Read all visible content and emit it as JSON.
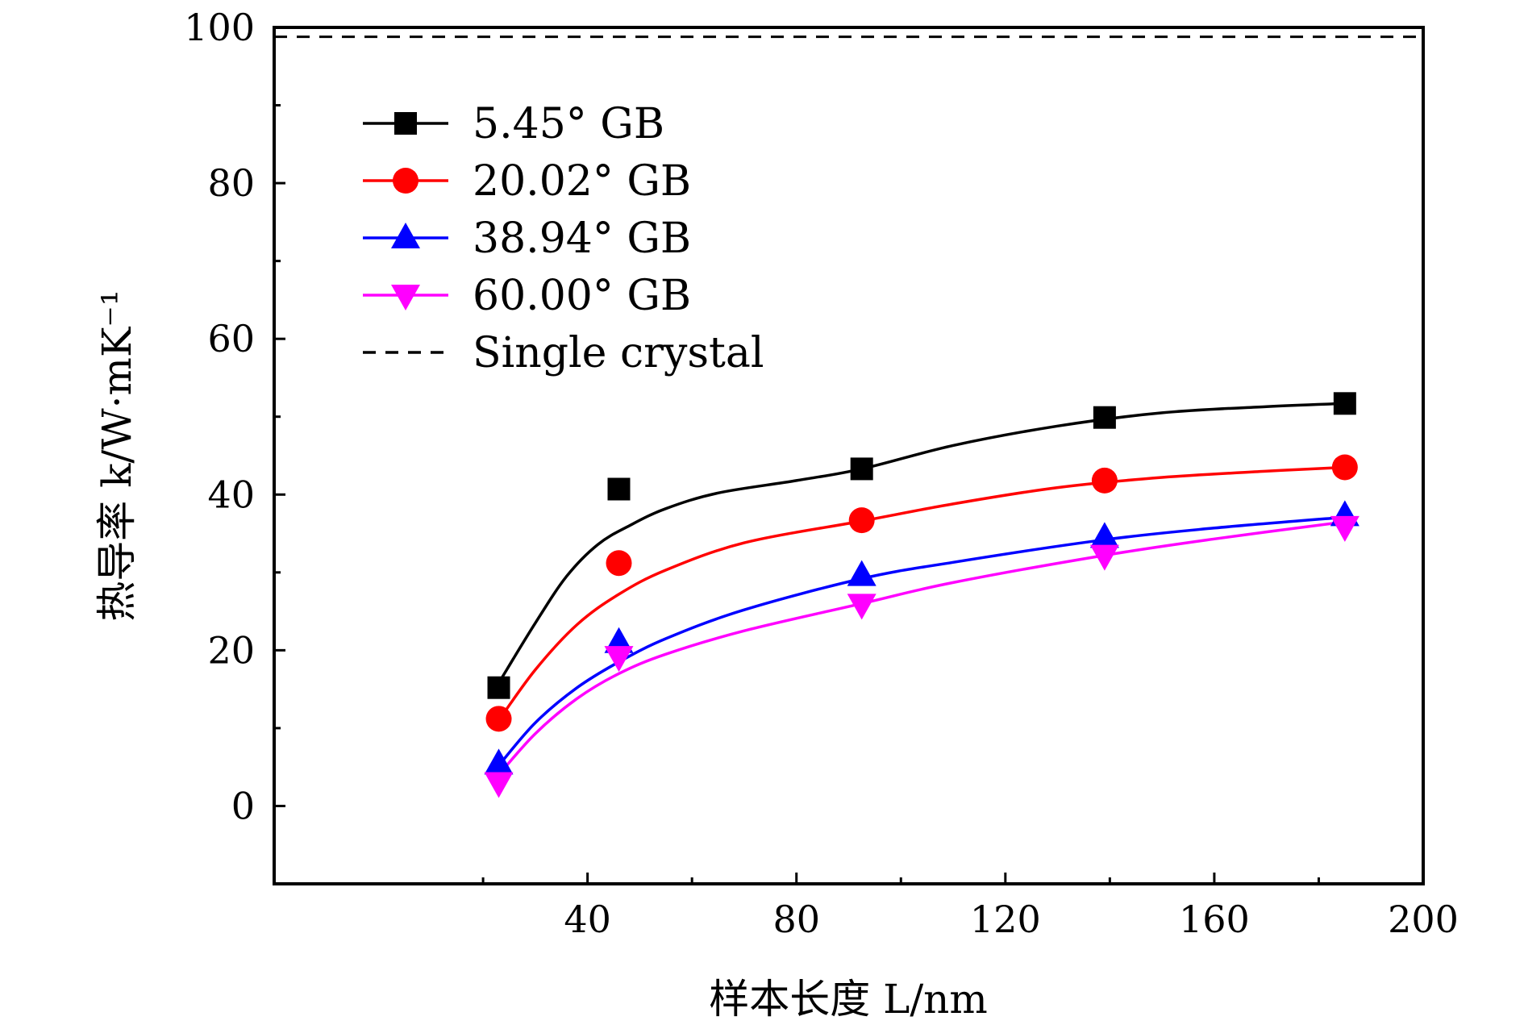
{
  "chart_data": {
    "type": "scatter",
    "title": "",
    "xlabel": "样本长度 L/nm",
    "ylabel": "热导率 k/W·mK⁻¹",
    "xlim": [
      -20,
      200
    ],
    "ylim": [
      -10,
      100
    ],
    "xticks": [
      40,
      80,
      120,
      160,
      200
    ],
    "xtick_labels": [
      "40",
      "80",
      "120",
      "160",
      "200"
    ],
    "yticks": [
      0,
      20,
      40,
      60,
      80,
      100
    ],
    "ytick_labels": [
      "0",
      "20",
      "40",
      "60",
      "80",
      "100"
    ],
    "x": [
      23,
      46,
      92.5,
      139,
      185
    ],
    "grid": false,
    "legend_position": "top-left",
    "series": [
      {
        "name": "5.45° GB",
        "color": "#000000",
        "marker": "square",
        "values": [
          15.2,
          40.7,
          43.3,
          49.9,
          51.7
        ],
        "fit": [
          [
            23,
            15.8
          ],
          [
            30,
            23.5
          ],
          [
            36,
            29.5
          ],
          [
            42,
            33.6
          ],
          [
            48,
            36.0
          ],
          [
            55,
            38.2
          ],
          [
            65,
            40.2
          ],
          [
            80,
            41.8
          ],
          [
            92.5,
            43.3
          ],
          [
            110,
            46.3
          ],
          [
            130,
            48.8
          ],
          [
            150,
            50.5
          ],
          [
            170,
            51.3
          ],
          [
            185,
            51.7
          ]
        ]
      },
      {
        "name": "20.02° GB",
        "color": "#ff0000",
        "marker": "circle",
        "values": [
          11.2,
          31.2,
          36.7,
          41.8,
          43.5
        ],
        "fit": [
          [
            23,
            11.0
          ],
          [
            30,
            17.5
          ],
          [
            38,
            23.3
          ],
          [
            46,
            27.2
          ],
          [
            55,
            30.3
          ],
          [
            70,
            33.8
          ],
          [
            92.5,
            36.6
          ],
          [
            110,
            38.8
          ],
          [
            130,
            40.9
          ],
          [
            150,
            42.2
          ],
          [
            170,
            43.0
          ],
          [
            185,
            43.5
          ]
        ]
      },
      {
        "name": "38.94° GB",
        "color": "#0000ff",
        "marker": "triangle-up",
        "values": [
          5.4,
          21.0,
          29.6,
          34.5,
          37.3
        ],
        "fit": [
          [
            23,
            5.2
          ],
          [
            30,
            10.7
          ],
          [
            38,
            15.2
          ],
          [
            46,
            18.5
          ],
          [
            55,
            21.5
          ],
          [
            70,
            25.2
          ],
          [
            92.5,
            29.2
          ],
          [
            110,
            31.3
          ],
          [
            139,
            34.2
          ],
          [
            160,
            35.7
          ],
          [
            185,
            37.1
          ]
        ]
      },
      {
        "name": "60.00° GB",
        "color": "#ff00ff",
        "marker": "triangle-down",
        "values": [
          3.0,
          19.2,
          25.9,
          32.2,
          35.9
        ],
        "fit": [
          [
            23,
            4.0
          ],
          [
            30,
            9.3
          ],
          [
            38,
            13.8
          ],
          [
            46,
            17.0
          ],
          [
            55,
            19.5
          ],
          [
            70,
            22.5
          ],
          [
            92.5,
            26.0
          ],
          [
            110,
            28.7
          ],
          [
            139,
            32.2
          ],
          [
            160,
            34.3
          ],
          [
            185,
            36.5
          ]
        ]
      },
      {
        "name": "Single crystal",
        "color": "#000000",
        "marker": "none",
        "line_style": "dashed",
        "constant_value": 98.8
      }
    ]
  }
}
